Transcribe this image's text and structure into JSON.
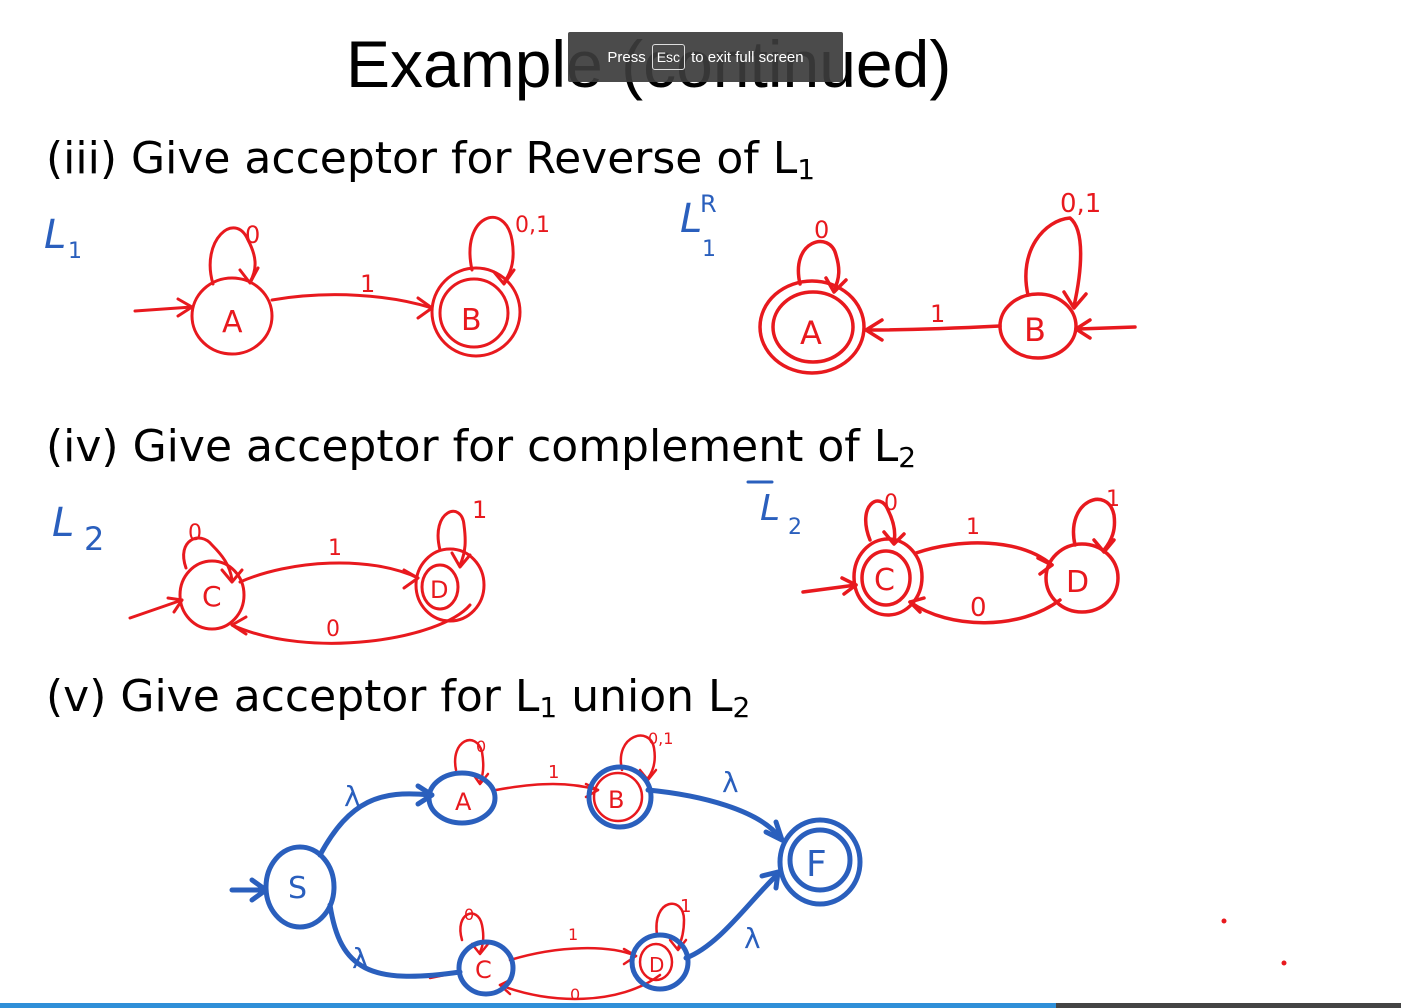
{
  "slide": {
    "title": "Example (continued)",
    "q3": {
      "text": "(iii) Give acceptor for Reverse of L",
      "sub": "1"
    },
    "q4": {
      "text": "(iv) Give acceptor for complement of L",
      "sub": "2"
    },
    "q5": {
      "text": "(v) Give acceptor for  L",
      "sub1": "1",
      "mid": "  union L",
      "sub2": "2"
    }
  },
  "fullscreen_toast": {
    "press": "Press",
    "key": "Esc",
    "suffix": "to exit full screen"
  },
  "annotations": {
    "l1_label": "L",
    "l1_sub": "1",
    "l1r_label": "L",
    "l1r_sup": "R",
    "l1r_sub": "1",
    "l2_label": "L",
    "l2_sub": "2",
    "l2c_label": "L",
    "l2c_sub": "2",
    "lambda": "λ",
    "states": {
      "A": "A",
      "B": "B",
      "C": "C",
      "D": "D",
      "S": "S",
      "F": "F"
    },
    "labels": {
      "zero": "0",
      "one": "1",
      "zero_one": "0,1"
    }
  },
  "colors": {
    "red_ink": "#e8191e",
    "blue_ink": "#2a5fbd",
    "toast_bg": "#3c3c3c",
    "progress": "#2f8fd8"
  }
}
